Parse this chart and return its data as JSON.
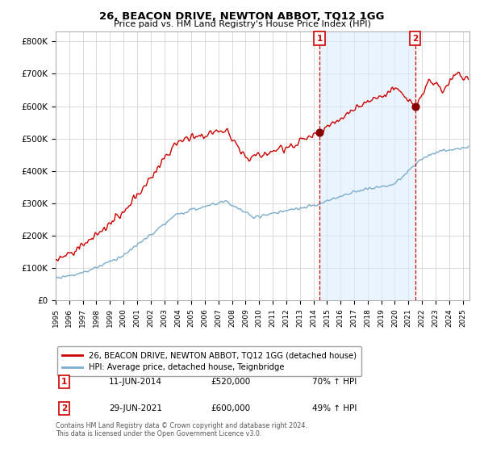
{
  "title": "26, BEACON DRIVE, NEWTON ABBOT, TQ12 1GG",
  "subtitle": "Price paid vs. HM Land Registry's House Price Index (HPI)",
  "legend_line1": "26, BEACON DRIVE, NEWTON ABBOT, TQ12 1GG (detached house)",
  "legend_line2": "HPI: Average price, detached house, Teignbridge",
  "purchase1_date": "11-JUN-2014",
  "purchase1_price": "£520,000",
  "purchase1_hpi": "70% ↑ HPI",
  "purchase2_date": "29-JUN-2021",
  "purchase2_price": "£600,000",
  "purchase2_hpi": "49% ↑ HPI",
  "footer": "Contains HM Land Registry data © Crown copyright and database right 2024.\nThis data is licensed under the Open Government Licence v3.0.",
  "ylim": [
    0,
    830000
  ],
  "yticks": [
    0,
    100000,
    200000,
    300000,
    400000,
    500000,
    600000,
    700000,
    800000
  ],
  "ytick_labels": [
    "£0",
    "£100K",
    "£200K",
    "£300K",
    "£400K",
    "£500K",
    "£600K",
    "£700K",
    "£800K"
  ],
  "red_color": "#cc0000",
  "blue_color": "#7aadcf",
  "shade_color": "#ddeeff",
  "purchase_marker_color": "#880000",
  "purchase1_x": 2014.44,
  "purchase1_y": 520000,
  "purchase2_x": 2021.49,
  "purchase2_y": 600000,
  "background_color": "#ffffff",
  "grid_color": "#cccccc",
  "xlim_left": 1995,
  "xlim_right": 2025.5
}
